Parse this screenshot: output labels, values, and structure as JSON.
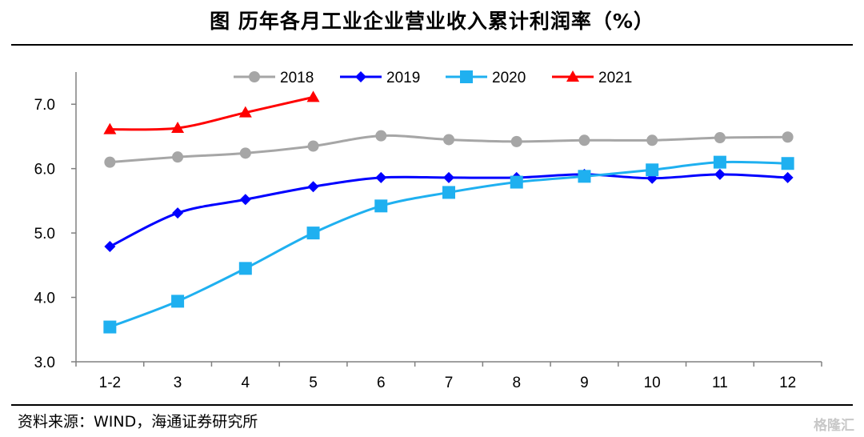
{
  "title": "图  历年各月工业企业营业收入累计利润率（%）",
  "source": "资料来源：WIND，海通证券研究所",
  "watermark": "格隆汇",
  "chart_data": {
    "type": "line",
    "title": "图  历年各月工业企业营业收入累计利润率（%）",
    "categories": [
      "1-2",
      "3",
      "4",
      "5",
      "6",
      "7",
      "8",
      "9",
      "10",
      "11",
      "12"
    ],
    "ylim": [
      3.0,
      7.5
    ],
    "yticks": [
      3.0,
      4.0,
      5.0,
      6.0,
      7.0
    ],
    "ytick_labels": [
      "3.0",
      "4.0",
      "5.0",
      "6.0",
      "7.0"
    ],
    "grid": false,
    "legend_position": "top",
    "series": [
      {
        "name": "2018",
        "color": "#a6a6a6",
        "marker": "circle",
        "values": [
          6.1,
          6.18,
          6.24,
          6.35,
          6.51,
          6.45,
          6.42,
          6.44,
          6.44,
          6.48,
          6.49
        ]
      },
      {
        "name": "2019",
        "color": "#0000ff",
        "marker": "diamond",
        "values": [
          4.79,
          5.31,
          5.52,
          5.72,
          5.86,
          5.86,
          5.86,
          5.91,
          5.85,
          5.91,
          5.86
        ]
      },
      {
        "name": "2020",
        "color": "#1fb0f0",
        "marker": "square",
        "values": [
          3.54,
          3.94,
          4.45,
          5.0,
          5.42,
          5.63,
          5.79,
          5.88,
          5.98,
          6.1,
          6.08
        ]
      },
      {
        "name": "2021",
        "color": "#ff0000",
        "marker": "triangle",
        "values": [
          6.61,
          6.63,
          6.87,
          7.11,
          null,
          null,
          null,
          null,
          null,
          null,
          null
        ]
      }
    ]
  }
}
